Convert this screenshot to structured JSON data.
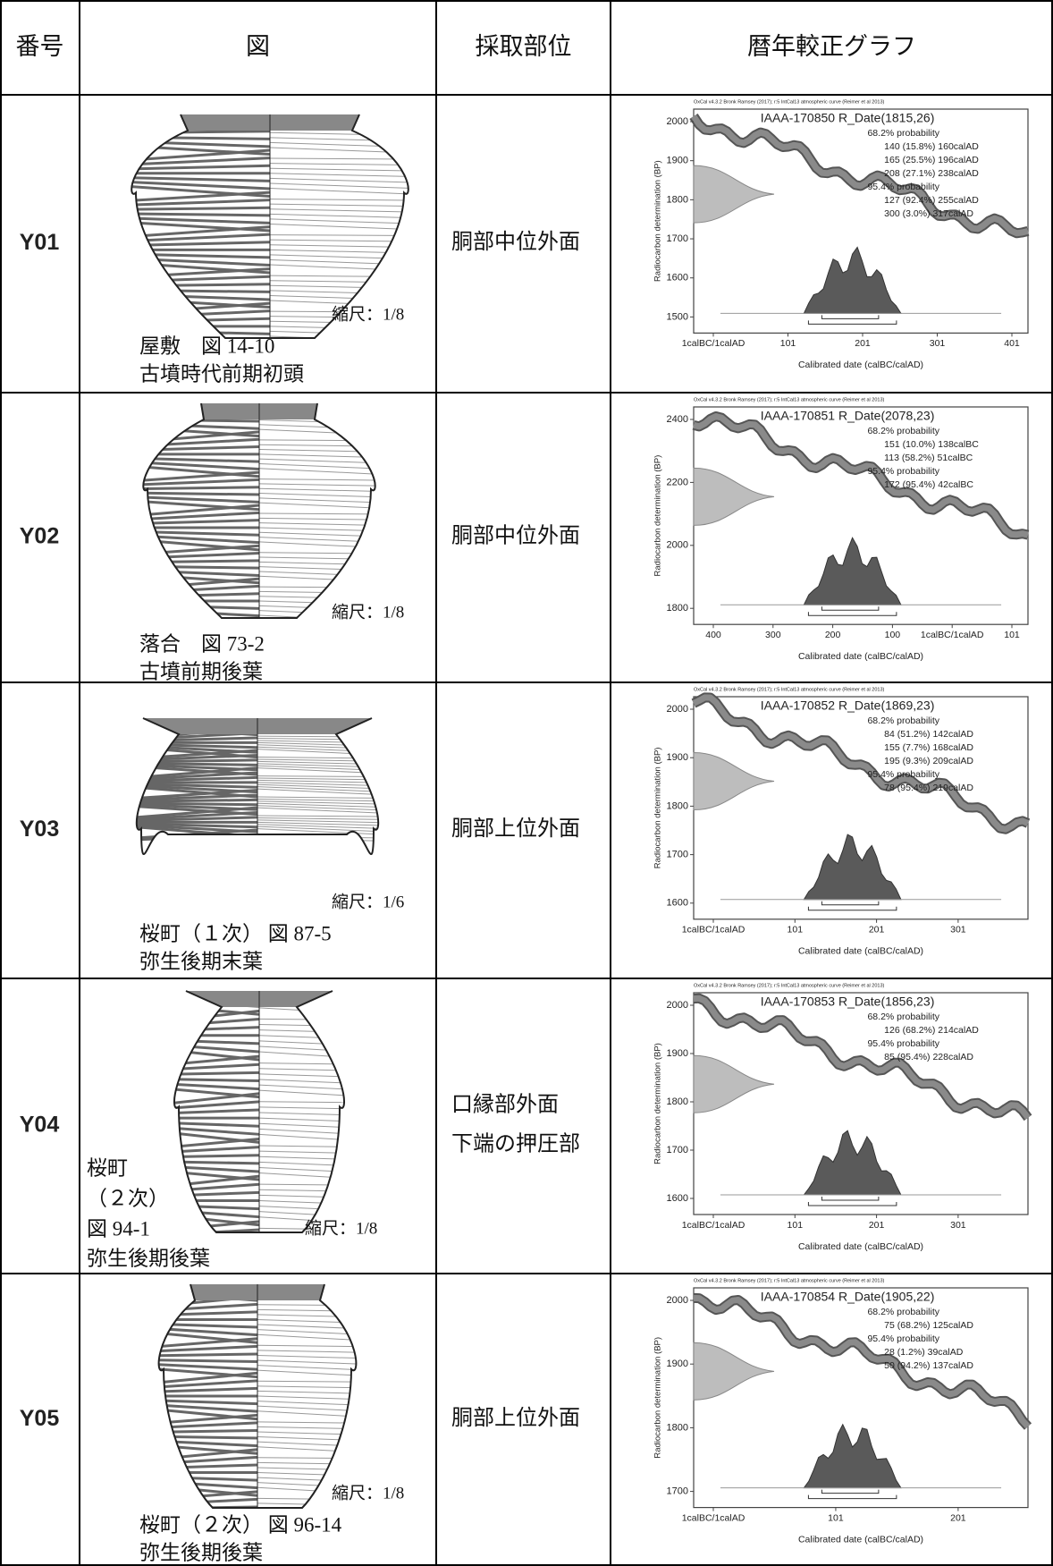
{
  "table": {
    "headers": [
      "番号",
      "図",
      "採取部位",
      "暦年較正グラフ"
    ],
    "rows": [
      {
        "id": "Y01",
        "figure": {
          "scale": "縮尺：1/8",
          "caption": [
            "屋敷　図 14-10",
            "古墳時代前期初頭"
          ]
        },
        "part": [
          "胴部中位外面"
        ],
        "graph": {
          "header": "OxCal v4.3.2 Bronk Ramsey (2017); r:5 IntCal13 atmospheric curve (Reimer et al 2013)",
          "title": "IAAA-170850 R_Date(1815,26)",
          "lines": [
            "68.2% probability",
            "140 (15.8%) 160calAD",
            "165 (25.5%) 196calAD",
            "208 (27.1%) 238calAD",
            "95.4% probability",
            "127 (92.4%) 255calAD",
            "300 (3.0%) 317calAD"
          ],
          "yticks": [
            2000,
            1900,
            1800,
            1700,
            1600,
            1500
          ],
          "xticks": [
            "1calBC/1calAD",
            101,
            201,
            301,
            401
          ],
          "ylabel": "Radiocarbon determination (BP)",
          "xlabel": "Calibrated date (calBC/calAD)"
        }
      },
      {
        "id": "Y02",
        "figure": {
          "scale": "縮尺：1/8",
          "caption": [
            "落合　図 73-2",
            "古墳前期後葉"
          ]
        },
        "part": [
          "胴部中位外面"
        ],
        "graph": {
          "header": "OxCal v4.3.2 Bronk Ramsey (2017); r:5 IntCal13 atmospheric curve (Reimer et al 2013)",
          "title": "IAAA-170851 R_Date(2078,23)",
          "lines": [
            "68.2% probability",
            "151 (10.0%) 138calBC",
            "113 (58.2%) 51calBC",
            "95.4% probability",
            "172 (95.4%) 42calBC"
          ],
          "yticks": [
            2400,
            2200,
            2000,
            1800
          ],
          "xticks": [
            400,
            300,
            200,
            100,
            "1calBC/1calAD",
            101
          ],
          "ylabel": "Radiocarbon determination (BP)",
          "xlabel": "Calibrated date (calBC/calAD)"
        }
      },
      {
        "id": "Y03",
        "figure": {
          "scale": "縮尺：1/6",
          "caption": [
            "桜町（１次） 図 87-5",
            "弥生後期末葉"
          ]
        },
        "part": [
          "胴部上位外面"
        ],
        "graph": {
          "header": "OxCal v4.3.2 Bronk Ramsey (2017); r:5 IntCal13 atmospheric curve (Reimer et al 2013)",
          "title": "IAAA-170852 R_Date(1869,23)",
          "lines": [
            "68.2% probability",
            "84 (51.2%) 142calAD",
            "155 (7.7%) 168calAD",
            "195 (9.3%) 209calAD",
            "95.4% probability",
            "78 (95.4%) 219calAD"
          ],
          "yticks": [
            2000,
            1900,
            1800,
            1700,
            1600
          ],
          "xticks": [
            "1calBC/1calAD",
            101,
            201,
            301
          ],
          "ylabel": "Radiocarbon determination (BP)",
          "xlabel": "Calibrated date (calBC/calAD)"
        }
      },
      {
        "id": "Y04",
        "figure": {
          "scale": "縮尺：1/8",
          "caption": [
            "桜町",
            "（２次）",
            "図 94-1",
            "弥生後期後葉"
          ]
        },
        "part": [
          "口縁部外面",
          "下端の押圧部"
        ],
        "graph": {
          "header": "OxCal v4.3.2 Bronk Ramsey (2017); r:5 IntCal13 atmospheric curve (Reimer et al 2013)",
          "title": "IAAA-170853 R_Date(1856,23)",
          "lines": [
            "68.2% probability",
            "126 (68.2%) 214calAD",
            "95.4% probability",
            "85 (95.4%) 228calAD"
          ],
          "yticks": [
            2000,
            1900,
            1800,
            1700,
            1600
          ],
          "xticks": [
            "1calBC/1calAD",
            101,
            201,
            301
          ],
          "ylabel": "Radiocarbon determination (BP)",
          "xlabel": "Calibrated date (calBC/calAD)"
        }
      },
      {
        "id": "Y05",
        "figure": {
          "scale": "縮尺：1/8",
          "caption": [
            "桜町（２次） 図 96-14",
            "弥生後期後葉"
          ]
        },
        "part": [
          "胴部上位外面"
        ],
        "graph": {
          "header": "OxCal v4.3.2 Bronk Ramsey (2017); r:5 IntCal13 atmospheric curve (Reimer et al 2013)",
          "title": "IAAA-170854 R_Date(1905,22)",
          "lines": [
            "68.2% probability",
            "75 (68.2%) 125calAD",
            "95.4% probability",
            "28 (1.2%) 39calAD",
            "50 (94.2%) 137calAD"
          ],
          "yticks": [
            2000,
            1900,
            1800,
            1700
          ],
          "xticks": [
            "1calBC/1calAD",
            101,
            201
          ],
          "ylabel": "Radiocarbon determination (BP)",
          "xlabel": "Calibrated date (calBC/calAD)"
        }
      }
    ]
  }
}
